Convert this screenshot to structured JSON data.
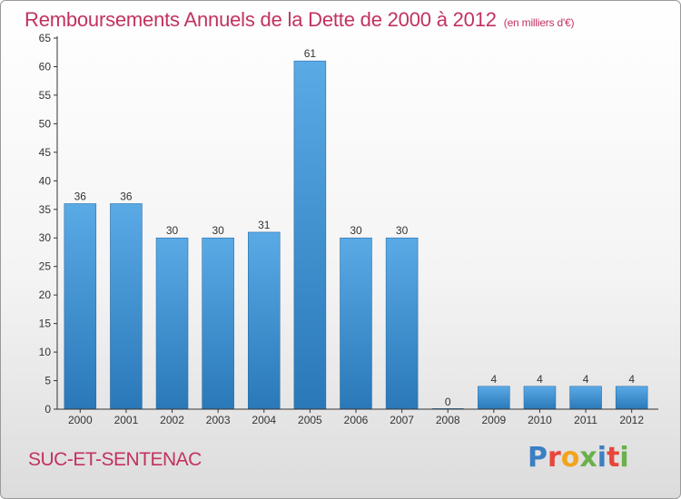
{
  "header": {
    "title": "Remboursements Annuels de la Dette de 2000 à 2012",
    "unit": "(en milliers d'€)"
  },
  "footer": {
    "commune": "SUC-ET-SENTENAC",
    "logo_letters": [
      "P",
      "r",
      "o",
      "x",
      "i",
      "t",
      "i"
    ],
    "logo_colors": [
      "#3b7fc4",
      "#e8463a",
      "#f2a41f",
      "#6ab04c",
      "#3b7fc4",
      "#e8463a",
      "#6ab04c"
    ]
  },
  "colors": {
    "bar_top": "#5aaae6",
    "bar_bottom": "#2a78b8",
    "axis": "#333333",
    "grid": "#cfcfcf"
  },
  "chart_data": {
    "type": "bar",
    "title": "Remboursements Annuels de la Dette de 2000 à 2012",
    "ylabel": "",
    "xlabel": "",
    "categories": [
      "2000",
      "2001",
      "2002",
      "2003",
      "2004",
      "2005",
      "2006",
      "2007",
      "2008",
      "2009",
      "2010",
      "2011",
      "2012"
    ],
    "values": [
      36,
      36,
      30,
      30,
      31,
      61,
      30,
      30,
      0,
      4,
      4,
      4,
      4
    ],
    "ylim": [
      0,
      65
    ],
    "yticks": [
      0,
      5,
      10,
      15,
      20,
      25,
      30,
      35,
      40,
      45,
      50,
      55,
      60,
      65
    ],
    "grid": false,
    "data_labels": true
  }
}
